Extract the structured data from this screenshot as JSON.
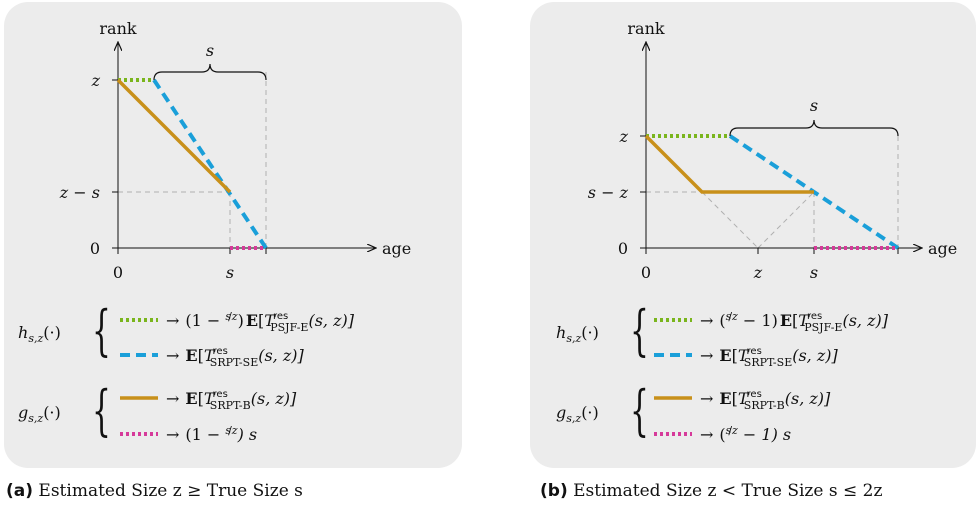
{
  "colors": {
    "green": "#7ab51d",
    "blue": "#1a9fd9",
    "gold": "#c8901a",
    "pink": "#d63a9a",
    "guide": "#b0b0b0"
  },
  "common": {
    "y_axis_label": "rank",
    "x_axis_label": "age",
    "h_label": "h",
    "h_sub": "s,z",
    "h_args": "(·)",
    "g_label": "g",
    "g_sub": "s,z",
    "g_args": "(·)",
    "arrow": "→",
    "s_label": "s",
    "z_label": "z",
    "zero_label": "0",
    "E": "E",
    "T": "T",
    "res": "res",
    "args": "(s, z)]",
    "lbracket": "[",
    "rparen_s": "s"
  },
  "panel_a": {
    "y_ticks": [
      "z",
      "z − s",
      "0"
    ],
    "x_ticks": [
      "0",
      "s"
    ],
    "brace_label": "s",
    "legend": {
      "green_prefix": "(1 − ",
      "green_frac_num": "s",
      "green_frac_den": "z",
      "green_suffix": ")",
      "green_sub": "PSJF-E",
      "blue_sub": "SRPT-SE",
      "gold_sub": "SRPT-B",
      "pink_prefix": "(1 − ",
      "pink_frac_num": "s",
      "pink_frac_den": "z",
      "pink_suffix": ") s"
    },
    "caption_tag": "(a)",
    "caption_text": "Estimated Size z ≥ True Size s"
  },
  "panel_b": {
    "y_ticks": [
      "z",
      "s − z",
      "0"
    ],
    "x_ticks": [
      "0",
      "z",
      "s"
    ],
    "brace_label": "s",
    "legend": {
      "green_prefix": "(",
      "green_frac_num": "s",
      "green_frac_den": "z",
      "green_suffix": " − 1)",
      "green_sub": "PSJF-E",
      "blue_sub": "SRPT-SE",
      "gold_sub": "SRPT-B",
      "pink_prefix": "(",
      "pink_frac_num": "s",
      "pink_frac_den": "z",
      "pink_suffix": " − 1) s"
    },
    "caption_tag": "(b)",
    "caption_text": "Estimated Size z < True Size s ≤ 2z"
  }
}
